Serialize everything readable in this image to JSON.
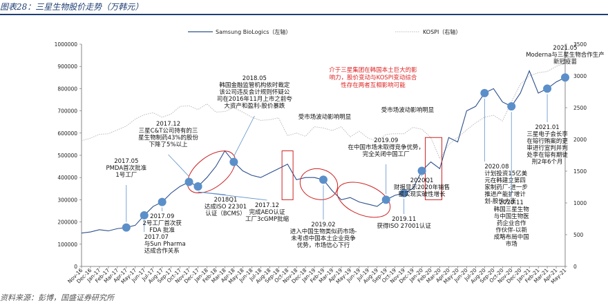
{
  "title": "图表28：三星生物股价走势（万韩元）",
  "source": "资料来源：彭博，国盛证券研究所",
  "colors": {
    "series1": "#2c4f8c",
    "series2": "#b8b8b8",
    "marker": "#5b8fc9",
    "highlight": "#cc2222",
    "arrow": "#5b8fc9"
  },
  "chart_data": {
    "type": "line",
    "x": [
      "Nov-16",
      "Dec-16",
      "Jan-17",
      "Feb-17",
      "Mar-17",
      "Apr-17",
      "May-17",
      "Jun-17",
      "Jul-17",
      "Aug-17",
      "Sep-17",
      "Oct-17",
      "Nov-17",
      "Dec-17",
      "Jan-18",
      "Feb-18",
      "Mar-18",
      "Apr-18",
      "May-18",
      "Jun-18",
      "Jul-18",
      "Aug-18",
      "Sep-18",
      "Oct-18",
      "Nov-18",
      "Dec-18",
      "Jan-19",
      "Feb-19",
      "Mar-19",
      "Apr-19",
      "May-19",
      "Jun-19",
      "Jul-19",
      "Aug-19",
      "Sep-19",
      "Oct-19",
      "Nov-19",
      "Dec-19",
      "Jan-20",
      "Feb-20",
      "Mar-20",
      "Apr-20",
      "May-20",
      "Jun-20",
      "Jul-20",
      "Aug-20",
      "Sep-20",
      "Oct-20",
      "Nov-20",
      "Dec-20",
      "Jan-21",
      "Feb-21",
      "Mar-21",
      "Apr-21",
      "May-21"
    ],
    "series": [
      {
        "name": "Samsung BioLogics",
        "legend_suffix": "（左轴）",
        "axis": "left",
        "values": [
          150000,
          155000,
          165000,
          160000,
          170000,
          175000,
          185000,
          230000,
          270000,
          290000,
          330000,
          360000,
          380000,
          360000,
          400000,
          450000,
          520000,
          470000,
          430000,
          410000,
          400000,
          420000,
          440000,
          460000,
          390000,
          400000,
          400000,
          390000,
          340000,
          300000,
          310000,
          290000,
          280000,
          270000,
          300000,
          320000,
          330000,
          350000,
          430000,
          470000,
          440000,
          580000,
          560000,
          700000,
          720000,
          780000,
          800000,
          740000,
          720000,
          780000,
          880000,
          780000,
          800000,
          830000,
          850000
        ]
      },
      {
        "name": "KOSPI",
        "legend_suffix": "（右轴）",
        "axis": "right",
        "values": [
          1980,
          2020,
          2080,
          2090,
          2150,
          2210,
          2320,
          2390,
          2420,
          2350,
          2400,
          2520,
          2530,
          2470,
          2560,
          2430,
          2440,
          2500,
          2430,
          2350,
          2300,
          2310,
          2340,
          2060,
          2100,
          2050,
          2200,
          2180,
          2140,
          2200,
          2040,
          2130,
          2020,
          1970,
          2080,
          2090,
          2090,
          2190,
          2160,
          2030,
          1700,
          1920,
          2030,
          2150,
          2260,
          2350,
          2380,
          2290,
          2590,
          2870,
          3000,
          3050,
          3070,
          3150,
          3200
        ]
      }
    ],
    "left_axis": {
      "min": 0,
      "max": 1000000,
      "ticks": [
        "0",
        "100000",
        "200000",
        "300000",
        "400000",
        "500000",
        "600000",
        "700000",
        "800000",
        "900000",
        "1000000"
      ]
    },
    "right_axis": {
      "min": 0,
      "max": 3500,
      "ticks": [
        "0",
        "500",
        "1000",
        "1500",
        "2000",
        "2500",
        "3000",
        "3500"
      ]
    },
    "legend_position": "top-center",
    "grid": false,
    "annotations": [
      {
        "idx": 5,
        "text": [
          "2017.05",
          "PMDA首次批准",
          "1号工厂"
        ]
      },
      {
        "idx": 7,
        "text": [
          "2017.07",
          "与Sun Pharma",
          "达成合作关系"
        ]
      },
      {
        "idx": 9,
        "text": [
          "2017.09",
          "2号工厂首次获",
          "FDA 批准"
        ]
      },
      {
        "idx": 12,
        "text": [
          "2017.12",
          "三星C&T公司持有的三",
          "星生物制药43%的股份",
          "下降了5%以上"
        ]
      },
      {
        "idx": 13,
        "text": [
          "2018Q1",
          "达成ISO 22301",
          "认证（BCMS）"
        ]
      },
      {
        "idx": 17,
        "text": [
          "2018.05",
          "韩国金融监管机构依时裁定",
          "该公司违反会计规则怀疑公",
          "司在2016年11月上市之前夸",
          "大资产和盈利-股价暴跌"
        ]
      },
      {
        "idx": 13,
        "text": [
          "2017.12",
          "完成AEO认证",
          "工厂3cGMP批缩"
        ]
      },
      {
        "idx": 27,
        "text": [
          "2019.02",
          "进入中国生物类似药市场-",
          "未考虑中国本土企业竞争",
          "优势，市场信心下行"
        ]
      },
      {
        "idx": 34,
        "text": [
          "2019.09",
          "在中国市场未取得竞争优势，",
          "完全关闭中国工厂"
        ]
      },
      {
        "idx": 36,
        "text": [
          "2019.11",
          "获得ISO 27001认证"
        ]
      },
      {
        "idx": 38,
        "text": [
          "2020Q1",
          "财报显示2020年销售",
          "额实现实破性增长"
        ]
      },
      {
        "idx": 45,
        "text": [
          "2020.08",
          "计划投资15亿美",
          "元在韩建立第四",
          "家制药厂-进一步",
          "推进产能扩增计",
          "划-股价大涨"
        ]
      },
      {
        "idx": 48,
        "text": [
          "2020.11",
          "韩国三星生物",
          "与中国生物医",
          "药企业合作",
          "作伙伴-以新",
          "成略布局中国",
          "市场"
        ]
      },
      {
        "idx": 52,
        "text": [
          "2021.01",
          "三星电子会长李",
          "在镕行贿案的更",
          "审进行宣判并判",
          "处李在镕有期徒",
          "刑2年6个月"
        ]
      },
      {
        "idx": 54,
        "text": [
          "2021.05",
          "Moderna与三星生物合作生产",
          "新冠疫苗"
        ]
      }
    ],
    "note_red": [
      "介于三星集团在韩国本土巨大的影",
      "响力，股价变动与KOSPI变动综合",
      "性存在两者互相影响可能"
    ],
    "note_market1": "受市场波动影响明显",
    "note_market2": "受市场波动影响明显"
  }
}
